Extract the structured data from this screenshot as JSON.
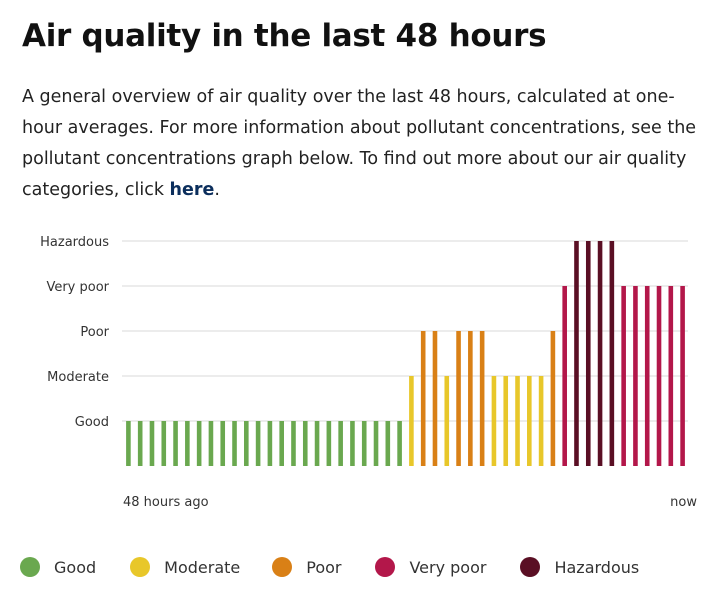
{
  "header": {
    "title": "Air quality in the last 48 hours",
    "desc_text": "A general overview of air quality over the last 48 hours, calculated at one-hour averages. For more information about pollutant concentrations, see the pollutant concentrations graph below. To find out more about our air quality categories, click ",
    "link_label": "here",
    "desc_end": "."
  },
  "chart_data": {
    "type": "bar",
    "title": "Air quality in the last 48 hours",
    "xlabel": "",
    "ylabel": "",
    "x_start_label": "48 hours ago",
    "x_end_label": "now",
    "y_categories": [
      "Good",
      "Moderate",
      "Poor",
      "Very poor",
      "Hazardous"
    ],
    "ylim": [
      0,
      5
    ],
    "hours": [
      48,
      47,
      46,
      45,
      44,
      43,
      42,
      41,
      40,
      39,
      38,
      37,
      36,
      35,
      34,
      33,
      32,
      31,
      30,
      29,
      28,
      27,
      26,
      25,
      24,
      23,
      22,
      21,
      20,
      19,
      18,
      17,
      16,
      15,
      14,
      13,
      12,
      11,
      10,
      9,
      8,
      7,
      6,
      5,
      4,
      3,
      2,
      1
    ],
    "values": [
      1,
      1,
      1,
      1,
      1,
      1,
      1,
      1,
      1,
      1,
      1,
      1,
      1,
      1,
      1,
      1,
      1,
      1,
      1,
      1,
      1,
      1,
      1,
      1,
      2,
      3,
      3,
      2,
      3,
      3,
      3,
      2,
      2,
      2,
      2,
      2,
      3,
      4,
      5,
      5,
      5,
      5,
      4,
      4,
      4,
      4,
      4,
      4
    ],
    "category_colors": {
      "1": "#6aa84f",
      "2": "#e8c72a",
      "3": "#d98016",
      "4": "#b3174a",
      "5": "#5a0f24"
    }
  },
  "legend": [
    {
      "label": "Good",
      "color": "#6aa84f"
    },
    {
      "label": "Moderate",
      "color": "#e8c72a"
    },
    {
      "label": "Poor",
      "color": "#d98016"
    },
    {
      "label": "Very poor",
      "color": "#b3174a"
    },
    {
      "label": "Hazardous",
      "color": "#5a0f24"
    }
  ]
}
